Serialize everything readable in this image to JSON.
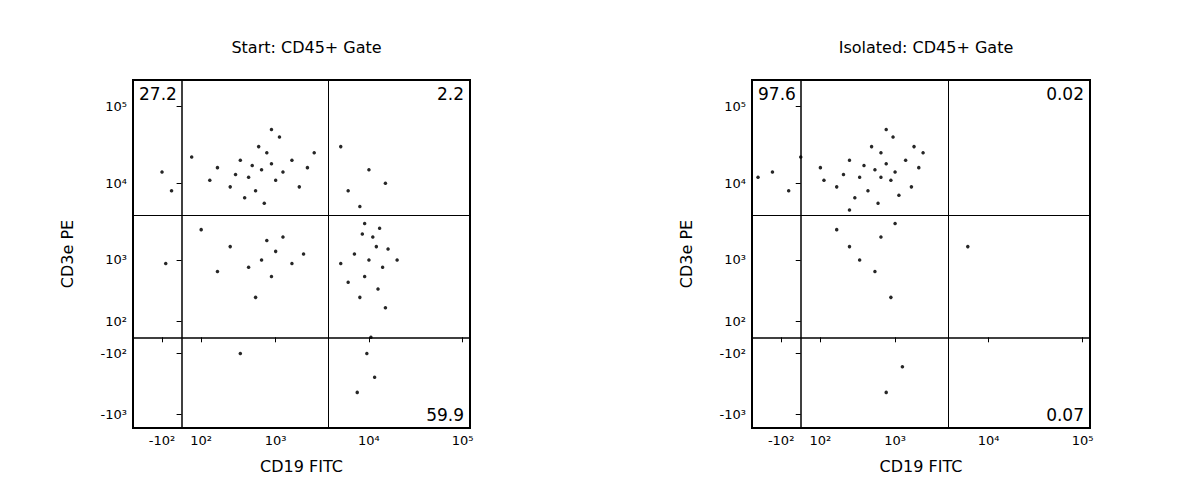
{
  "chart_data": [
    {
      "type": "scatter",
      "title": "Start: CD45+ Gate",
      "x_label": "CD19 FITC",
      "y_label": "CD3e PE",
      "log": true,
      "grid": false,
      "color": "#000000",
      "marker": "dot",
      "xlim": [
        -300,
        120000
      ],
      "ylim": [
        -1500,
        220000
      ],
      "xticks": [
        {
          "value": -100,
          "label": "-10²"
        },
        {
          "value": 100,
          "label": "10²"
        },
        {
          "value": 1000,
          "label": "10³"
        },
        {
          "value": 10000,
          "label": "10⁴"
        },
        {
          "value": 100000,
          "label": "10⁵"
        }
      ],
      "yticks": [
        {
          "value": -1000,
          "label": "-10³"
        },
        {
          "value": -100,
          "label": "-10²"
        },
        {
          "value": 100,
          "label": "10²"
        },
        {
          "value": 1000,
          "label": "10³"
        },
        {
          "value": 10000,
          "label": "10⁴"
        },
        {
          "value": 100000,
          "label": "10⁵"
        }
      ],
      "quadrant_gate": {
        "x": 3700,
        "y": 3800
      },
      "quadrant_percentages": {
        "upper_left": 27.2,
        "upper_right": 2.2,
        "lower_right": 59.9
      },
      "x": [
        700,
        500,
        900,
        400,
        1200,
        300,
        800,
        600,
        1500,
        200,
        1000,
        650,
        450,
        1800,
        -100,
        50,
        1100,
        350,
        2200,
        750,
        -50,
        150,
        2600,
        900,
        550,
        700,
        500,
        1000,
        900,
        300,
        1500,
        600,
        1200,
        200,
        800,
        400,
        2000,
        -80,
        100,
        10000,
        9000,
        12000,
        8000,
        11000,
        14000,
        7000,
        9500,
        13000,
        10500,
        6000,
        16000,
        8500,
        11500,
        12500,
        9000,
        20000,
        5000,
        7500,
        15000,
        6000,
        10000,
        5000,
        8000,
        15000
      ],
      "values": [
        15000,
        12000,
        18000,
        20000,
        14000,
        9000,
        25000,
        8000,
        20000,
        16000,
        11000,
        30000,
        6500,
        9000,
        14000,
        22000,
        40000,
        13000,
        16000,
        5500,
        8000,
        11000,
        25000,
        50000,
        17000,
        1000,
        800,
        1300,
        600,
        1500,
        900,
        300,
        2000,
        700,
        1800,
        -100,
        1200,
        900,
        2500,
        1000,
        600,
        1500,
        300,
        2000,
        800,
        1200,
        -100,
        2600,
        0,
        500,
        1400,
        2200,
        -300,
        400,
        3000,
        1000,
        900,
        -500,
        200,
        8000,
        15000,
        30000,
        5000,
        10000
      ]
    },
    {
      "type": "scatter",
      "title": "Isolated: CD45+ Gate",
      "x_label": "CD19 FITC",
      "y_label": "CD3e PE",
      "log": true,
      "grid": false,
      "color": "#000000",
      "marker": "dot",
      "xlim": [
        -300,
        120000
      ],
      "ylim": [
        -1500,
        220000
      ],
      "xticks": [
        {
          "value": -100,
          "label": "-10²"
        },
        {
          "value": 100,
          "label": "10²"
        },
        {
          "value": 1000,
          "label": "10³"
        },
        {
          "value": 10000,
          "label": "10⁴"
        },
        {
          "value": 100000,
          "label": "10⁵"
        }
      ],
      "yticks": [
        {
          "value": -1000,
          "label": "-10³"
        },
        {
          "value": -100,
          "label": "-10²"
        },
        {
          "value": 100,
          "label": "10²"
        },
        {
          "value": 1000,
          "label": "10³"
        },
        {
          "value": 10000,
          "label": "10⁴"
        },
        {
          "value": 100000,
          "label": "10⁵"
        }
      ],
      "quadrant_gate": {
        "x": 3700,
        "y": 3800
      },
      "quadrant_percentages": {
        "upper_left": 97.6,
        "upper_right": 0.02,
        "lower_right": 0.07
      },
      "x": [
        600,
        400,
        800,
        300,
        1000,
        200,
        700,
        500,
        1300,
        100,
        900,
        550,
        350,
        1500,
        -150,
        0,
        950,
        250,
        1800,
        650,
        -60,
        120,
        2000,
        800,
        450,
        1100,
        -250,
        700,
        1600,
        300,
        700,
        400,
        900,
        1200,
        300,
        600,
        200,
        800,
        1000,
        6000
      ],
      "values": [
        15000,
        12000,
        18000,
        20000,
        14000,
        9000,
        25000,
        8000,
        20000,
        16000,
        11000,
        30000,
        6500,
        9000,
        14000,
        22000,
        40000,
        13000,
        16000,
        5500,
        8000,
        11000,
        25000,
        50000,
        17000,
        7000,
        12000,
        12000,
        30000,
        4500,
        2000,
        1000,
        300,
        -200,
        1500,
        700,
        2500,
        -500,
        3000,
        1500
      ]
    }
  ]
}
